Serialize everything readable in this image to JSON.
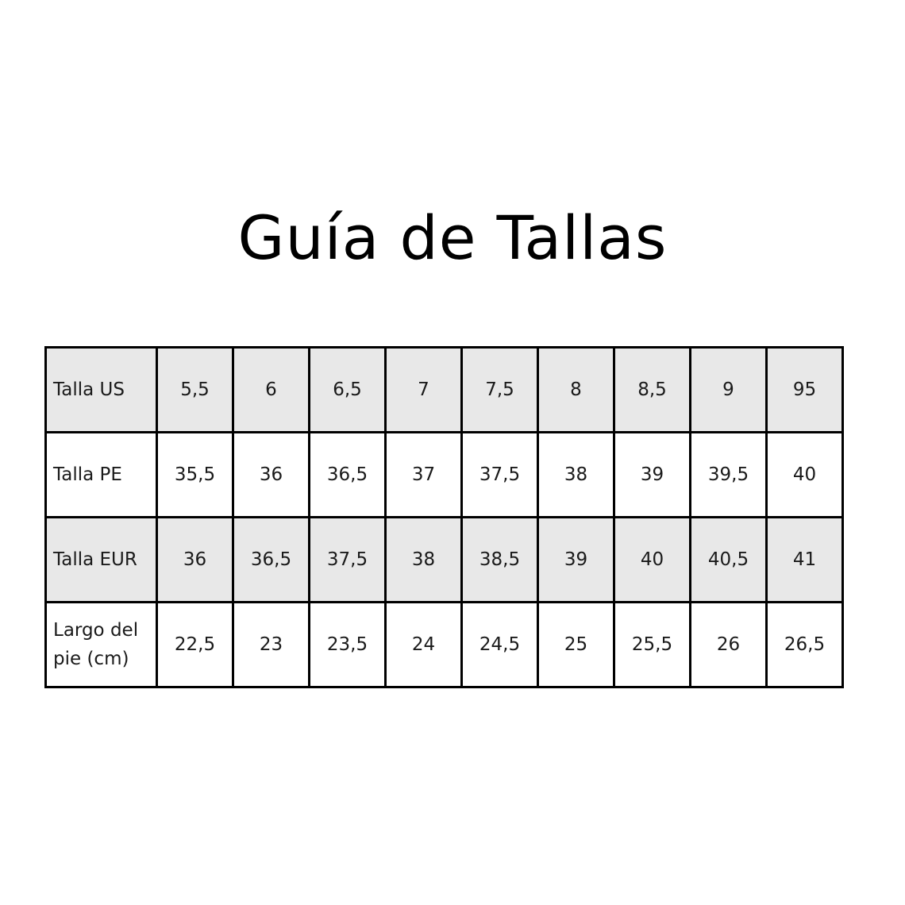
{
  "title": "Guía de Tallas",
  "table": {
    "rows": [
      {
        "label": "Talla US",
        "values": [
          "5,5",
          "6",
          "6,5",
          "7",
          "7,5",
          "8",
          "8,5",
          "9",
          "95"
        ]
      },
      {
        "label": "Talla PE",
        "values": [
          "35,5",
          "36",
          "36,5",
          "37",
          "37,5",
          "38",
          "39",
          "39,5",
          "40"
        ]
      },
      {
        "label": "Talla EUR",
        "values": [
          "36",
          "36,5",
          "37,5",
          "38",
          "38,5",
          "39",
          "40",
          "40,5",
          "41"
        ]
      },
      {
        "label": "Largo del pie (cm)",
        "values": [
          "22,5",
          "23",
          "23,5",
          "24",
          "24,5",
          "25",
          "25,5",
          "26",
          "26,5"
        ]
      }
    ]
  },
  "colors": {
    "shaded_row": "#e8e8e8",
    "border": "#000000"
  }
}
